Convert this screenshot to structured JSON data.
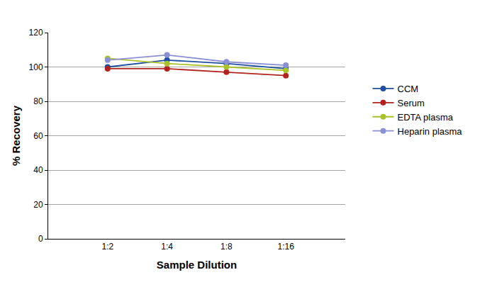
{
  "chart_data": {
    "type": "line",
    "x_label": "Sample Dilution",
    "y_label": "% Recovery",
    "categories": [
      "1:2",
      "1:4",
      "1:8",
      "1:16"
    ],
    "series": [
      {
        "name": "CCM",
        "color": "#1f4f9e",
        "values": [
          100,
          104,
          102,
          99
        ]
      },
      {
        "name": "Serum",
        "color": "#b3221f",
        "values": [
          99,
          99,
          97,
          95
        ]
      },
      {
        "name": "EDTA plasma",
        "color": "#a9c22a",
        "values": [
          105,
          102,
          100,
          98
        ]
      },
      {
        "name": "Heparin plasma",
        "color": "#8a8fd6",
        "values": [
          104,
          107,
          103,
          101
        ]
      }
    ],
    "ylim": [
      0,
      120
    ],
    "yticks": [
      0,
      20,
      40,
      60,
      80,
      100,
      120
    ],
    "grid": true,
    "legend": "right",
    "marker": "circle"
  }
}
